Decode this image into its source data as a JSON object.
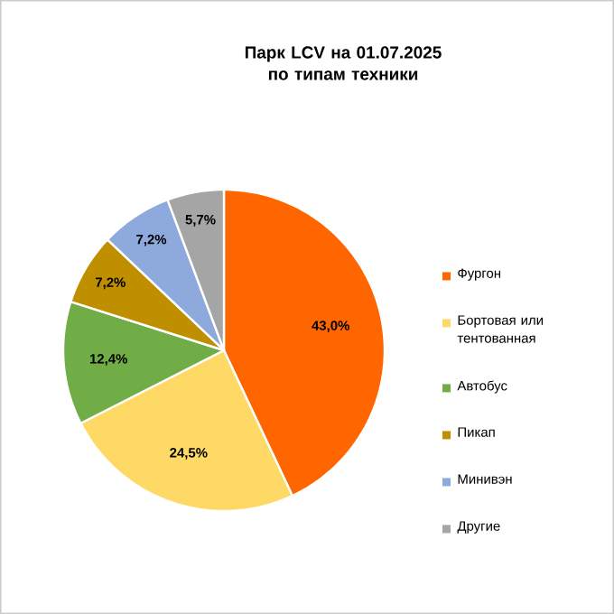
{
  "chart_data": {
    "type": "pie",
    "title": "Парк LCV на 01.07.2025 по типам техники",
    "categories": [
      "Фургон",
      "Бортовая или тентованная",
      "Автобус",
      "Пикап",
      "Минивэн",
      "Другие"
    ],
    "values": [
      43.0,
      24.5,
      12.4,
      7.2,
      7.2,
      5.7
    ],
    "value_labels": [
      "43,0%",
      "24,5%",
      "12,4%",
      "7,2%",
      "7,2%",
      "5,7%"
    ],
    "colors": [
      "#ff6600",
      "#ffd966",
      "#70ad47",
      "#bf8f00",
      "#8ea9db",
      "#a5a5a5"
    ],
    "legend": "right"
  }
}
